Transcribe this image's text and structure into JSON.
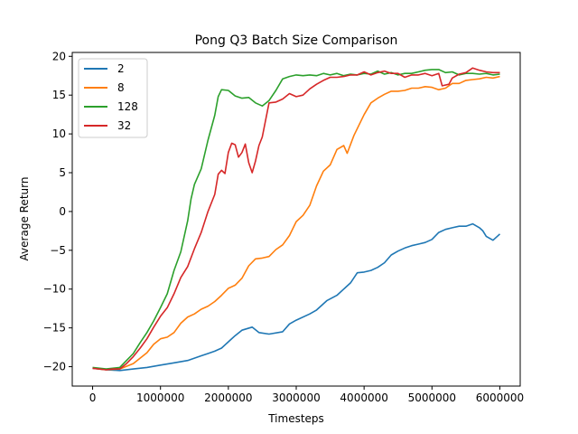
{
  "chart_data": {
    "type": "line",
    "title": "Pong Q3 Batch Size Comparison",
    "xlabel": "Timesteps",
    "ylabel": "Average Return",
    "xlim": [
      -300000,
      6300000
    ],
    "ylim": [
      -22.5,
      20.5
    ],
    "xticks": [
      0,
      1000000,
      2000000,
      3000000,
      4000000,
      5000000,
      6000000
    ],
    "xtick_labels": [
      "0",
      "1000000",
      "2000000",
      "3000000",
      "4000000",
      "5000000",
      "6000000"
    ],
    "yticks": [
      20,
      15,
      10,
      5,
      0,
      -5,
      -10,
      -15,
      -20
    ],
    "ytick_labels": [
      "20",
      "15",
      "10",
      "5",
      "0",
      "−5",
      "−10",
      "−15",
      "−20"
    ],
    "grid": false,
    "legend_position": "top-left",
    "series": [
      {
        "name": "2",
        "color": "#1f77b4",
        "points": [
          [
            0,
            -20.2
          ],
          [
            200000,
            -20.4
          ],
          [
            400000,
            -20.5
          ],
          [
            600000,
            -20.3
          ],
          [
            800000,
            -20.1
          ],
          [
            1000000,
            -19.8
          ],
          [
            1200000,
            -19.5
          ],
          [
            1400000,
            -19.2
          ],
          [
            1500000,
            -18.9
          ],
          [
            1600000,
            -18.6
          ],
          [
            1700000,
            -18.3
          ],
          [
            1800000,
            -18.0
          ],
          [
            1900000,
            -17.6
          ],
          [
            2000000,
            -16.8
          ],
          [
            2100000,
            -16.0
          ],
          [
            2200000,
            -15.3
          ],
          [
            2350000,
            -14.9
          ],
          [
            2450000,
            -15.6
          ],
          [
            2600000,
            -15.8
          ],
          [
            2800000,
            -15.5
          ],
          [
            2900000,
            -14.5
          ],
          [
            3000000,
            -14.0
          ],
          [
            3200000,
            -13.2
          ],
          [
            3300000,
            -12.7
          ],
          [
            3450000,
            -11.5
          ],
          [
            3600000,
            -10.8
          ],
          [
            3800000,
            -9.2
          ],
          [
            3900000,
            -7.9
          ],
          [
            4000000,
            -7.8
          ],
          [
            4100000,
            -7.6
          ],
          [
            4200000,
            -7.2
          ],
          [
            4300000,
            -6.6
          ],
          [
            4400000,
            -5.6
          ],
          [
            4500000,
            -5.1
          ],
          [
            4600000,
            -4.7
          ],
          [
            4700000,
            -4.4
          ],
          [
            4800000,
            -4.2
          ],
          [
            4900000,
            -4.0
          ],
          [
            5000000,
            -3.6
          ],
          [
            5100000,
            -2.7
          ],
          [
            5200000,
            -2.3
          ],
          [
            5300000,
            -2.1
          ],
          [
            5400000,
            -1.9
          ],
          [
            5500000,
            -1.9
          ],
          [
            5600000,
            -1.6
          ],
          [
            5700000,
            -2.1
          ],
          [
            5750000,
            -2.5
          ],
          [
            5800000,
            -3.2
          ],
          [
            5900000,
            -3.7
          ],
          [
            6000000,
            -2.9
          ]
        ]
      },
      {
        "name": "8",
        "color": "#ff7f0e",
        "points": [
          [
            0,
            -20.2
          ],
          [
            200000,
            -20.4
          ],
          [
            400000,
            -20.3
          ],
          [
            600000,
            -19.6
          ],
          [
            800000,
            -18.2
          ],
          [
            900000,
            -17.1
          ],
          [
            1000000,
            -16.4
          ],
          [
            1100000,
            -16.2
          ],
          [
            1200000,
            -15.6
          ],
          [
            1300000,
            -14.4
          ],
          [
            1400000,
            -13.6
          ],
          [
            1500000,
            -13.2
          ],
          [
            1600000,
            -12.6
          ],
          [
            1700000,
            -12.2
          ],
          [
            1800000,
            -11.6
          ],
          [
            1900000,
            -10.8
          ],
          [
            2000000,
            -9.9
          ],
          [
            2100000,
            -9.5
          ],
          [
            2200000,
            -8.6
          ],
          [
            2300000,
            -7.0
          ],
          [
            2400000,
            -6.1
          ],
          [
            2500000,
            -6.0
          ],
          [
            2600000,
            -5.8
          ],
          [
            2700000,
            -4.9
          ],
          [
            2800000,
            -4.3
          ],
          [
            2900000,
            -3.1
          ],
          [
            3000000,
            -1.3
          ],
          [
            3100000,
            -0.5
          ],
          [
            3200000,
            0.8
          ],
          [
            3300000,
            3.3
          ],
          [
            3400000,
            5.2
          ],
          [
            3500000,
            6.0
          ],
          [
            3600000,
            8.0
          ],
          [
            3700000,
            8.5
          ],
          [
            3750000,
            7.5
          ],
          [
            3850000,
            9.8
          ],
          [
            4000000,
            12.5
          ],
          [
            4100000,
            14.0
          ],
          [
            4200000,
            14.6
          ],
          [
            4300000,
            15.1
          ],
          [
            4400000,
            15.5
          ],
          [
            4500000,
            15.5
          ],
          [
            4600000,
            15.6
          ],
          [
            4700000,
            15.9
          ],
          [
            4800000,
            15.9
          ],
          [
            4900000,
            16.1
          ],
          [
            5000000,
            16.0
          ],
          [
            5100000,
            15.7
          ],
          [
            5200000,
            15.9
          ],
          [
            5300000,
            16.5
          ],
          [
            5400000,
            16.5
          ],
          [
            5500000,
            16.9
          ],
          [
            5600000,
            17.0
          ],
          [
            5700000,
            17.1
          ],
          [
            5800000,
            17.3
          ],
          [
            5900000,
            17.2
          ],
          [
            6000000,
            17.4
          ]
        ]
      },
      {
        "name": "128",
        "color": "#2ca02c",
        "points": [
          [
            0,
            -20.1
          ],
          [
            200000,
            -20.3
          ],
          [
            400000,
            -20.1
          ],
          [
            500000,
            -19.2
          ],
          [
            600000,
            -18.3
          ],
          [
            700000,
            -16.9
          ],
          [
            800000,
            -15.6
          ],
          [
            900000,
            -14.1
          ],
          [
            1000000,
            -12.4
          ],
          [
            1100000,
            -10.6
          ],
          [
            1200000,
            -7.6
          ],
          [
            1300000,
            -5.2
          ],
          [
            1400000,
            -1.2
          ],
          [
            1450000,
            1.6
          ],
          [
            1500000,
            3.5
          ],
          [
            1600000,
            5.5
          ],
          [
            1700000,
            9.2
          ],
          [
            1800000,
            12.4
          ],
          [
            1850000,
            14.8
          ],
          [
            1900000,
            15.7
          ],
          [
            2000000,
            15.6
          ],
          [
            2100000,
            14.9
          ],
          [
            2200000,
            14.6
          ],
          [
            2300000,
            14.7
          ],
          [
            2400000,
            14.0
          ],
          [
            2500000,
            13.6
          ],
          [
            2600000,
            14.3
          ],
          [
            2700000,
            15.6
          ],
          [
            2800000,
            17.1
          ],
          [
            2900000,
            17.4
          ],
          [
            3000000,
            17.6
          ],
          [
            3100000,
            17.5
          ],
          [
            3200000,
            17.6
          ],
          [
            3300000,
            17.5
          ],
          [
            3400000,
            17.8
          ],
          [
            3500000,
            17.6
          ],
          [
            3600000,
            17.8
          ],
          [
            3700000,
            17.5
          ],
          [
            3800000,
            17.7
          ],
          [
            3900000,
            17.6
          ],
          [
            4000000,
            17.8
          ],
          [
            4100000,
            17.7
          ],
          [
            4200000,
            18.1
          ],
          [
            4300000,
            17.7
          ],
          [
            4400000,
            17.9
          ],
          [
            4500000,
            17.6
          ],
          [
            4600000,
            17.8
          ],
          [
            4700000,
            17.8
          ],
          [
            4800000,
            18.0
          ],
          [
            4900000,
            18.2
          ],
          [
            5000000,
            18.3
          ],
          [
            5100000,
            18.3
          ],
          [
            5200000,
            17.9
          ],
          [
            5300000,
            18.0
          ],
          [
            5400000,
            17.6
          ],
          [
            5500000,
            17.8
          ],
          [
            5600000,
            17.8
          ],
          [
            5700000,
            17.7
          ],
          [
            5800000,
            17.8
          ],
          [
            5900000,
            17.6
          ],
          [
            6000000,
            17.7
          ]
        ]
      },
      {
        "name": "32",
        "color": "#d62728",
        "points": [
          [
            0,
            -20.2
          ],
          [
            200000,
            -20.4
          ],
          [
            300000,
            -20.3
          ],
          [
            400000,
            -20.3
          ],
          [
            500000,
            -19.6
          ],
          [
            600000,
            -18.7
          ],
          [
            700000,
            -17.6
          ],
          [
            800000,
            -16.4
          ],
          [
            900000,
            -14.9
          ],
          [
            1000000,
            -13.5
          ],
          [
            1100000,
            -12.4
          ],
          [
            1200000,
            -10.6
          ],
          [
            1300000,
            -8.5
          ],
          [
            1400000,
            -7.1
          ],
          [
            1500000,
            -4.8
          ],
          [
            1600000,
            -2.7
          ],
          [
            1700000,
            0.0
          ],
          [
            1800000,
            2.2
          ],
          [
            1850000,
            4.8
          ],
          [
            1900000,
            5.3
          ],
          [
            1950000,
            4.9
          ],
          [
            2000000,
            7.6
          ],
          [
            2050000,
            8.8
          ],
          [
            2100000,
            8.6
          ],
          [
            2150000,
            7.0
          ],
          [
            2200000,
            7.6
          ],
          [
            2250000,
            8.7
          ],
          [
            2300000,
            6.3
          ],
          [
            2350000,
            5.0
          ],
          [
            2400000,
            6.5
          ],
          [
            2450000,
            8.5
          ],
          [
            2500000,
            9.6
          ],
          [
            2600000,
            14.0
          ],
          [
            2700000,
            14.1
          ],
          [
            2800000,
            14.5
          ],
          [
            2900000,
            15.2
          ],
          [
            3000000,
            14.8
          ],
          [
            3100000,
            15.0
          ],
          [
            3200000,
            15.8
          ],
          [
            3300000,
            16.4
          ],
          [
            3400000,
            16.9
          ],
          [
            3500000,
            17.3
          ],
          [
            3600000,
            17.3
          ],
          [
            3700000,
            17.4
          ],
          [
            3800000,
            17.6
          ],
          [
            3900000,
            17.6
          ],
          [
            4000000,
            18.0
          ],
          [
            4100000,
            17.6
          ],
          [
            4200000,
            17.9
          ],
          [
            4300000,
            18.1
          ],
          [
            4400000,
            17.8
          ],
          [
            4500000,
            17.8
          ],
          [
            4600000,
            17.3
          ],
          [
            4700000,
            17.6
          ],
          [
            4800000,
            17.6
          ],
          [
            4900000,
            17.8
          ],
          [
            5000000,
            17.5
          ],
          [
            5100000,
            17.8
          ],
          [
            5150000,
            16.2
          ],
          [
            5250000,
            16.4
          ],
          [
            5300000,
            17.2
          ],
          [
            5400000,
            17.7
          ],
          [
            5500000,
            17.9
          ],
          [
            5600000,
            18.5
          ],
          [
            5700000,
            18.2
          ],
          [
            5800000,
            18.0
          ],
          [
            5900000,
            17.9
          ],
          [
            6000000,
            17.9
          ]
        ]
      }
    ]
  }
}
